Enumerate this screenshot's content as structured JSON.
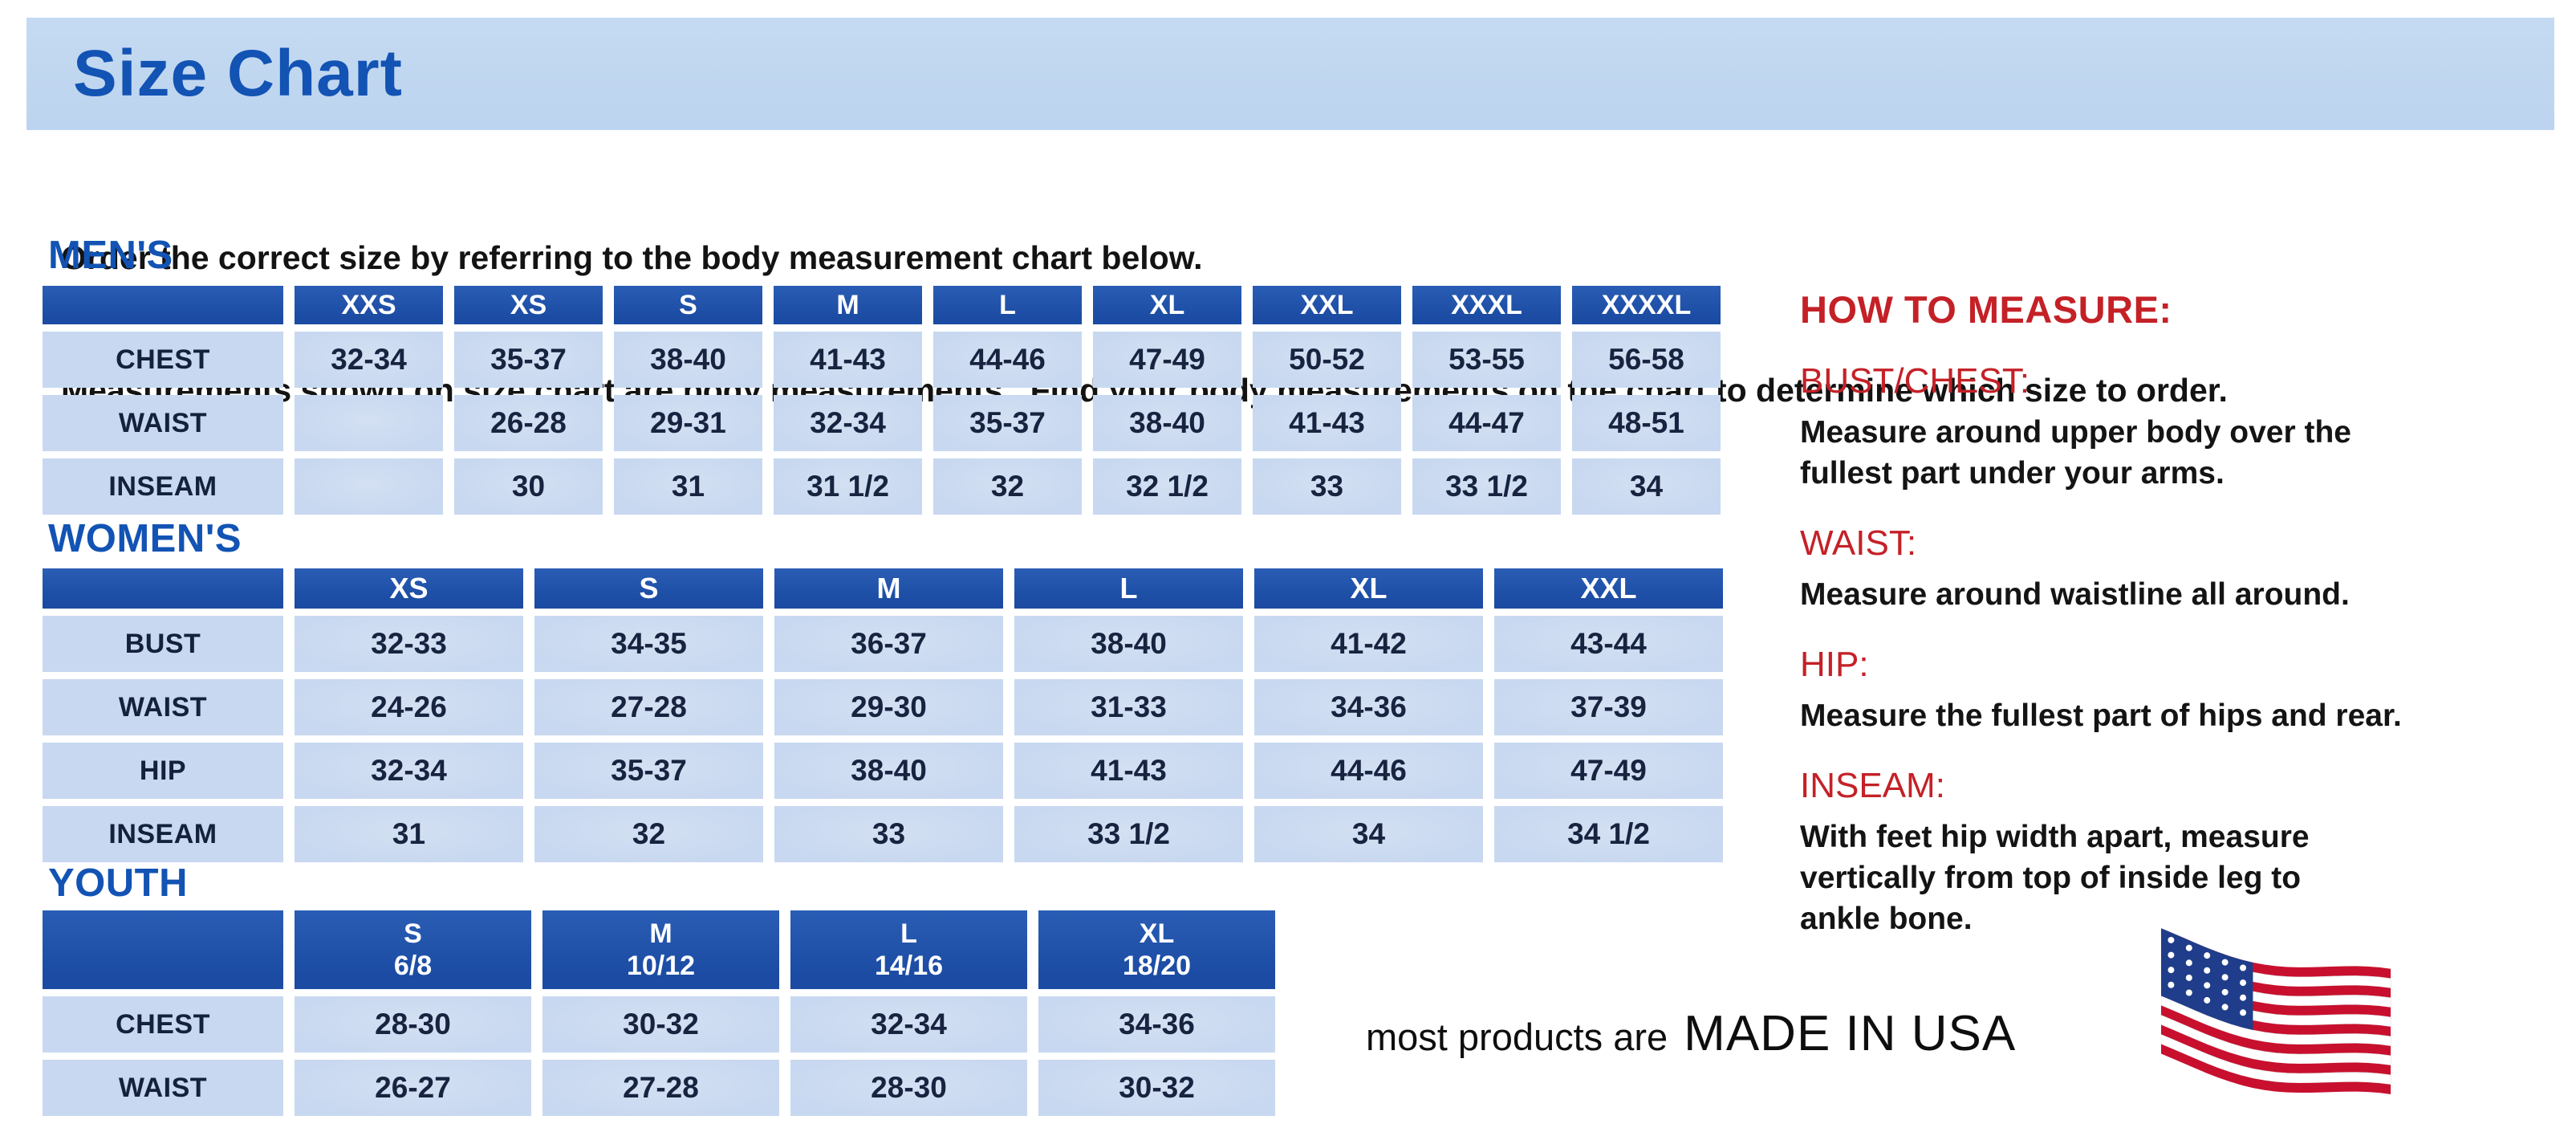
{
  "page": {
    "title": "Size Chart",
    "intro_line1": "Order the correct size by referring to the body measurement chart below.",
    "intro_line2": "Measurements shown on size chart are body measurements.  Find your body measurements on the chart to determine which size to order."
  },
  "tables": {
    "mens": {
      "heading": "MEN'S",
      "columns": [
        "XXS",
        "XS",
        "S",
        "M",
        "L",
        "XL",
        "XXL",
        "XXXL",
        "XXXXL"
      ],
      "rows": [
        {
          "label": "CHEST",
          "values": [
            "32-34",
            "35-37",
            "38-40",
            "41-43",
            "44-46",
            "47-49",
            "50-52",
            "53-55",
            "56-58"
          ]
        },
        {
          "label": "WAIST",
          "values": [
            "",
            "26-28",
            "29-31",
            "32-34",
            "35-37",
            "38-40",
            "41-43",
            "44-47",
            "48-51"
          ]
        },
        {
          "label": "INSEAM",
          "values": [
            "",
            "30",
            "31",
            "31 1/2",
            "32",
            "32 1/2",
            "33",
            "33 1/2",
            "34"
          ]
        }
      ]
    },
    "womens": {
      "heading": "WOMEN'S",
      "columns": [
        "XS",
        "S",
        "M",
        "L",
        "XL",
        "XXL"
      ],
      "rows": [
        {
          "label": "BUST",
          "values": [
            "32-33",
            "34-35",
            "36-37",
            "38-40",
            "41-42",
            "43-44"
          ]
        },
        {
          "label": "WAIST",
          "values": [
            "24-26",
            "27-28",
            "29-30",
            "31-33",
            "34-36",
            "37-39"
          ]
        },
        {
          "label": "HIP",
          "values": [
            "32-34",
            "35-37",
            "38-40",
            "41-43",
            "44-46",
            "47-49"
          ]
        },
        {
          "label": "INSEAM",
          "values": [
            "31",
            "32",
            "33",
            "33 1/2",
            "34",
            "34 1/2"
          ]
        }
      ]
    },
    "youth": {
      "heading": "YOUTH",
      "columns": [
        "S\n6/8",
        "M\n10/12",
        "L\n14/16",
        "XL\n18/20"
      ],
      "rows": [
        {
          "label": "CHEST",
          "values": [
            "28-30",
            "30-32",
            "32-34",
            "34-36"
          ]
        },
        {
          "label": "WAIST",
          "values": [
            "26-27",
            "27-28",
            "28-30",
            "30-32"
          ]
        }
      ]
    }
  },
  "how_to_measure": {
    "heading": "HOW TO MEASURE:",
    "sections": [
      {
        "label": "BUST/CHEST:",
        "text": "Measure around upper body over the\nfullest part under your arms."
      },
      {
        "label": "WAIST:",
        "text": "Measure around waistline all around."
      },
      {
        "label": "HIP:",
        "text": "Measure the fullest part of hips and rear."
      },
      {
        "label": "INSEAM:",
        "text": "With feet hip width apart, measure\nvertically from top of inside leg to\nankle bone."
      }
    ]
  },
  "footer": {
    "prefix": "most products are",
    "made_in": "MADE IN USA",
    "flag_icon": "us-flag-icon"
  },
  "colors": {
    "accent_blue": "#1253b4",
    "accent_red": "#c42127",
    "banner_blue": "#c5daf2",
    "header_blue": "#1b4ba2",
    "header_blue_light": "#2a5db5",
    "cell_blue": "#c8d8f0",
    "flag_red": "#c8102e",
    "flag_blue": "#1f3d8a"
  }
}
